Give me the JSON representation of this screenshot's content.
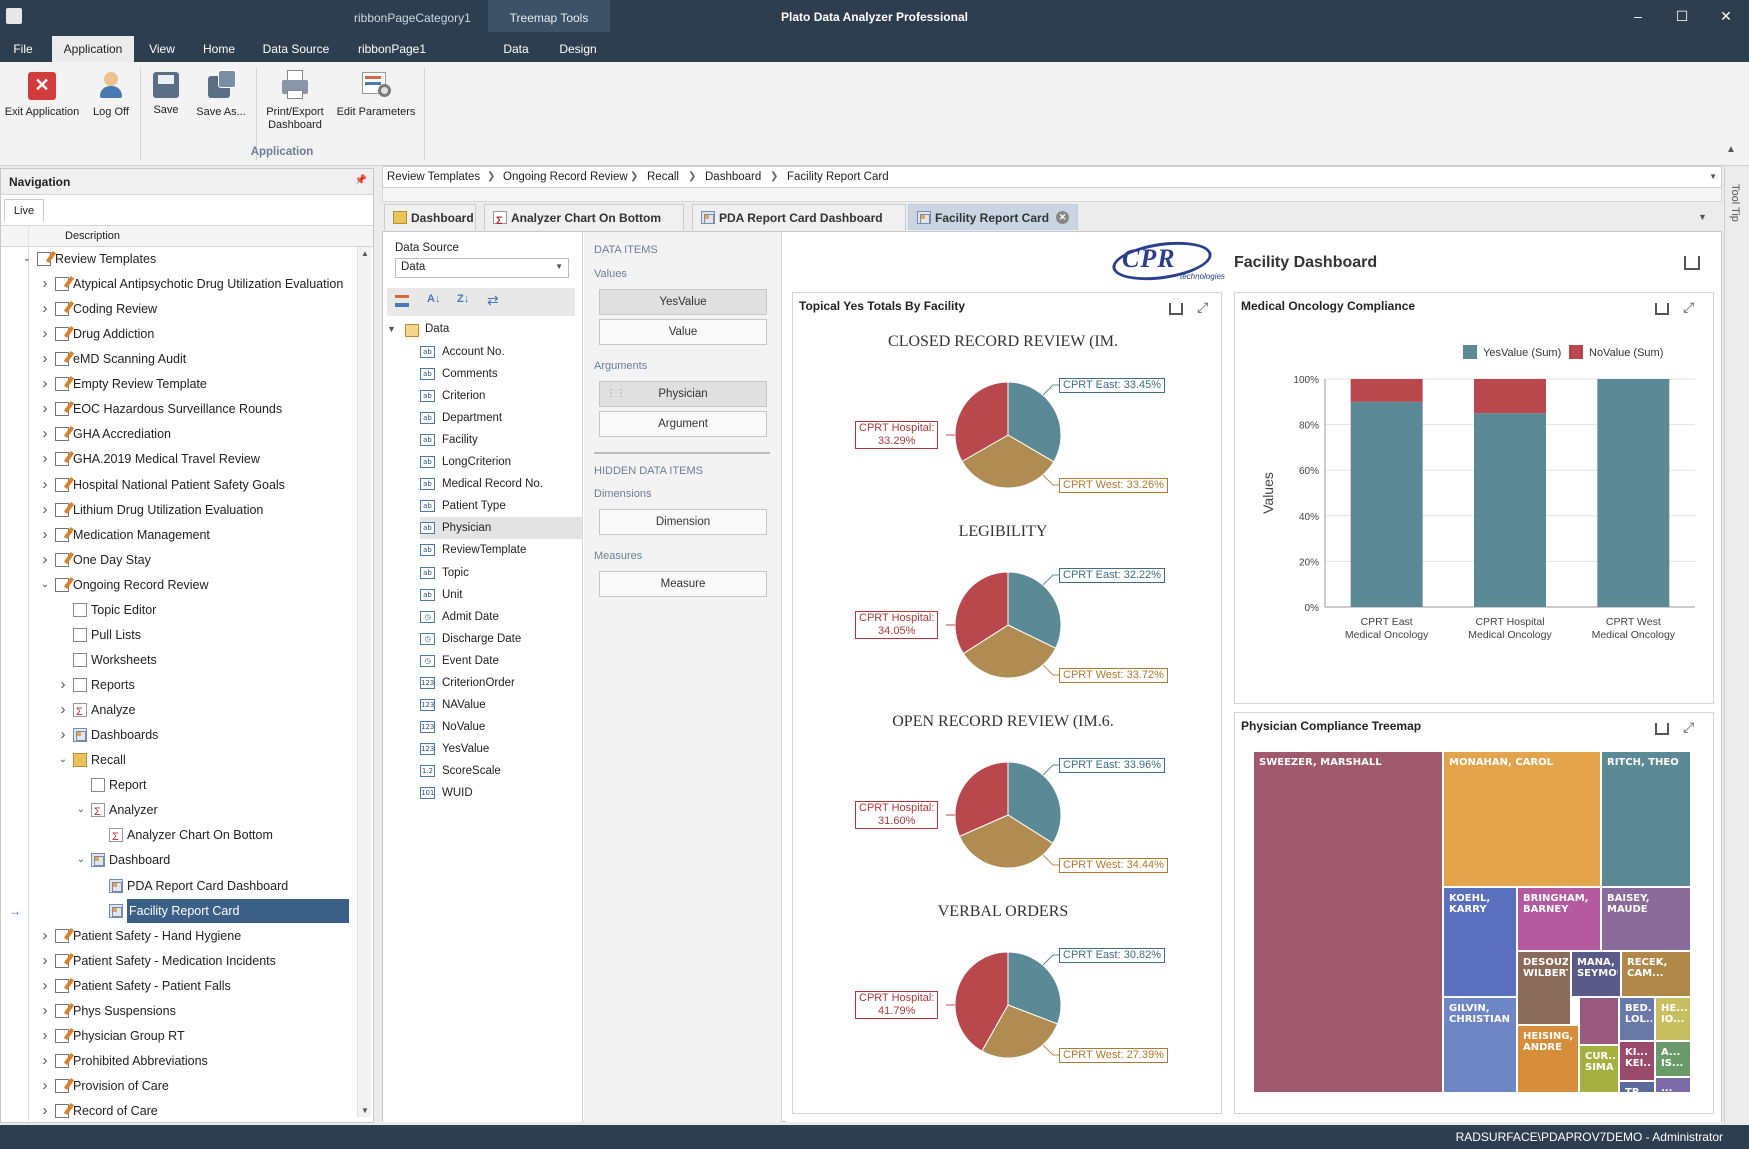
{
  "window": {
    "title": "Plato Data Analyzer Professional",
    "context_category": "ribbonPageCategory1",
    "context_tab": "Treemap Tools"
  },
  "menu": {
    "items": [
      "File",
      "Application",
      "View",
      "Home",
      "Data Source",
      "ribbonPage1",
      "Data",
      "Design"
    ],
    "active": "Application"
  },
  "ribbon": {
    "group_label": "Application",
    "buttons": [
      {
        "label": "Exit Application",
        "icon": "exit-icon"
      },
      {
        "label": "Log Off",
        "icon": "user-icon"
      },
      {
        "label": "Save",
        "icon": "save-icon"
      },
      {
        "label": "Save As...",
        "icon": "save-as-icon"
      },
      {
        "label": "Print/Export Dashboard",
        "icon": "print-icon"
      },
      {
        "label": "Edit Parameters",
        "icon": "parameters-icon"
      }
    ]
  },
  "navigation": {
    "title": "Navigation",
    "tab": "Live",
    "column": "Description",
    "tree": [
      {
        "label": "Review Templates",
        "level": 0,
        "expander": "v",
        "icon": "template"
      },
      {
        "label": "Atypical Antipsychotic Drug Utilization Evaluation",
        "level": 1,
        "expander": ">",
        "icon": "template"
      },
      {
        "label": "Coding Review",
        "level": 1,
        "expander": ">",
        "icon": "template"
      },
      {
        "label": "Drug Addiction",
        "level": 1,
        "expander": ">",
        "icon": "template"
      },
      {
        "label": "eMD Scanning Audit",
        "level": 1,
        "expander": ">",
        "icon": "template"
      },
      {
        "label": "Empty Review Template",
        "level": 1,
        "expander": ">",
        "icon": "template"
      },
      {
        "label": "EOC Hazardous Surveillance Rounds",
        "level": 1,
        "expander": ">",
        "icon": "template"
      },
      {
        "label": "GHA Accrediation",
        "level": 1,
        "expander": ">",
        "icon": "template"
      },
      {
        "label": "GHA.2019 Medical Travel Review",
        "level": 1,
        "expander": ">",
        "icon": "template"
      },
      {
        "label": "Hospital National Patient Safety Goals",
        "level": 1,
        "expander": ">",
        "icon": "template"
      },
      {
        "label": "Lithium Drug Utilization Evaluation",
        "level": 1,
        "expander": ">",
        "icon": "template"
      },
      {
        "label": "Medication Management",
        "level": 1,
        "expander": ">",
        "icon": "template"
      },
      {
        "label": "One Day Stay",
        "level": 1,
        "expander": ">",
        "icon": "template"
      },
      {
        "label": "Ongoing Record Review",
        "level": 1,
        "expander": "v",
        "icon": "template"
      },
      {
        "label": "Topic Editor",
        "level": 2,
        "expander": "",
        "icon": "page"
      },
      {
        "label": "Pull Lists",
        "level": 2,
        "expander": "",
        "icon": "page"
      },
      {
        "label": "Worksheets",
        "level": 2,
        "expander": "",
        "icon": "page"
      },
      {
        "label": "Reports",
        "level": 2,
        "expander": ">",
        "icon": "page"
      },
      {
        "label": "Analyze",
        "level": 2,
        "expander": ">",
        "icon": "chart"
      },
      {
        "label": "Dashboards",
        "level": 2,
        "expander": ">",
        "icon": "dashboard"
      },
      {
        "label": "Recall",
        "level": 2,
        "expander": "v",
        "icon": "folder"
      },
      {
        "label": "Report",
        "level": 3,
        "expander": "",
        "icon": "page"
      },
      {
        "label": "Analyzer",
        "level": 3,
        "expander": "v",
        "icon": "chart"
      },
      {
        "label": "Analyzer Chart On Bottom",
        "level": 4,
        "expander": "",
        "icon": "chart"
      },
      {
        "label": "Dashboard",
        "level": 3,
        "expander": "v",
        "icon": "dashboard"
      },
      {
        "label": "PDA Report Card Dashboard",
        "level": 4,
        "expander": "",
        "icon": "dashboard"
      },
      {
        "label": "Facility Report Card",
        "level": 4,
        "expander": "",
        "icon": "dashboard",
        "selected": true
      },
      {
        "label": "Patient Safety - Hand Hygiene",
        "level": 1,
        "expander": ">",
        "icon": "template"
      },
      {
        "label": "Patient Safety - Medication Incidents",
        "level": 1,
        "expander": ">",
        "icon": "template"
      },
      {
        "label": "Patient Safety - Patient Falls",
        "level": 1,
        "expander": ">",
        "icon": "template"
      },
      {
        "label": "Phys Suspensions",
        "level": 1,
        "expander": ">",
        "icon": "template"
      },
      {
        "label": "Physician Group RT",
        "level": 1,
        "expander": ">",
        "icon": "template"
      },
      {
        "label": "Prohibited Abbreviations",
        "level": 1,
        "expander": ">",
        "icon": "template"
      },
      {
        "label": "Provision of Care",
        "level": 1,
        "expander": ">",
        "icon": "template"
      },
      {
        "label": "Record of Care",
        "level": 1,
        "expander": ">",
        "icon": "template"
      }
    ]
  },
  "breadcrumb": [
    "Review Templates",
    "Ongoing Record Review",
    "Recall",
    "Dashboard",
    "Facility Report Card"
  ],
  "doc_tabs": [
    {
      "label": "Dashboard",
      "icon": "folder"
    },
    {
      "label": "Analyzer Chart On Bottom",
      "icon": "chart"
    },
    {
      "label": "PDA Report Card Dashboard",
      "icon": "dashboard"
    },
    {
      "label": "Facility Report Card",
      "icon": "dashboard",
      "active": true
    }
  ],
  "data_source": {
    "label": "Data Source",
    "value": "Data",
    "root": "Data",
    "fields": [
      {
        "name": "Account No.",
        "type": "ab"
      },
      {
        "name": "Comments",
        "type": "ab"
      },
      {
        "name": "Criterion",
        "type": "ab"
      },
      {
        "name": "Department",
        "type": "ab"
      },
      {
        "name": "Facility",
        "type": "ab"
      },
      {
        "name": "LongCriterion",
        "type": "ab"
      },
      {
        "name": "Medical Record No.",
        "type": "ab"
      },
      {
        "name": "Patient Type",
        "type": "ab"
      },
      {
        "name": "Physician",
        "type": "ab",
        "highlight": true
      },
      {
        "name": "ReviewTemplate",
        "type": "ab"
      },
      {
        "name": "Topic",
        "type": "ab"
      },
      {
        "name": "Unit",
        "type": "ab"
      },
      {
        "name": "Admit Date",
        "type": "date"
      },
      {
        "name": "Discharge Date",
        "type": "date"
      },
      {
        "name": "Event Date",
        "type": "date"
      },
      {
        "name": "CriterionOrder",
        "type": "123"
      },
      {
        "name": "NAValue",
        "type": "123"
      },
      {
        "name": "NoValue",
        "type": "123"
      },
      {
        "name": "YesValue",
        "type": "123"
      },
      {
        "name": "ScoreScale",
        "type": "1.2"
      },
      {
        "name": "WUID",
        "type": "101"
      }
    ]
  },
  "data_items": {
    "title": "DATA ITEMS",
    "values_label": "Values",
    "values": [
      "YesValue",
      "Value"
    ],
    "arguments_label": "Arguments",
    "arguments": [
      "Physician",
      "Argument"
    ],
    "hidden_title": "HIDDEN DATA ITEMS",
    "dimensions_label": "Dimensions",
    "dimension": "Dimension",
    "measures_label": "Measures",
    "measure": "Measure"
  },
  "dashboard": {
    "logo_text": "CPR",
    "logo_sub": "technologies",
    "title": "Facility Dashboard",
    "pie_card": {
      "title": "Topical Yes Totals By Facility",
      "pies": [
        {
          "title": "CLOSED RECORD REVIEW (IM.",
          "east": "CPRT East: 33.45%",
          "hospital": "CPRT Hospital:\n33.29%",
          "west": "CPRT West: 33.26%",
          "values": [
            33.45,
            33.26,
            33.29
          ]
        },
        {
          "title": "LEGIBILITY",
          "east": "CPRT East: 32.22%",
          "hospital": "CPRT Hospital:\n34.05%",
          "west": "CPRT West: 33.72%",
          "values": [
            32.22,
            33.72,
            34.05
          ]
        },
        {
          "title": "OPEN RECORD REVIEW (IM.6.",
          "east": "CPRT East: 33.96%",
          "hospital": "CPRT Hospital:\n31.60%",
          "west": "CPRT West: 34.44%",
          "values": [
            33.96,
            34.44,
            31.6
          ]
        },
        {
          "title": "VERBAL ORDERS",
          "east": "CPRT East: 30.82%",
          "hospital": "CPRT Hospital:\n41.79%",
          "west": "CPRT West: 27.39%",
          "values": [
            30.82,
            27.39,
            41.79
          ]
        }
      ],
      "colors": {
        "east": "#5b8a96",
        "west": "#b08c52",
        "hospital": "#b8484c"
      }
    },
    "bar_card": {
      "title": "Medical Oncology Compliance",
      "ylabel": "Values",
      "legend": [
        "YesValue (Sum)",
        "NoValue (Sum)"
      ],
      "colors": [
        "#5b8a96",
        "#b8484c"
      ]
    },
    "treemap_card": {
      "title": "Physician Compliance Treemap",
      "cells": [
        {
          "label": "SWEEZER, MARSHALL",
          "color": "#a05a6e"
        },
        {
          "label": "MONAHAN, CAROL",
          "color": "#e3a44c"
        },
        {
          "label": "RITCH, THEO",
          "color": "#5b8a96"
        },
        {
          "label": "KOEHL,\nKARRY",
          "color": "#5b6fbf"
        },
        {
          "label": "BRINGHAM,\nBARNEY",
          "color": "#b45aa0"
        },
        {
          "label": "BAISEY,\nMAUDE",
          "color": "#8a6a98"
        },
        {
          "label": "DESOUZA,\nWILBERT",
          "color": "#8a6a58"
        },
        {
          "label": "MANA,\nSEYMOUR",
          "color": "#5a5a8a"
        },
        {
          "label": "RECEK,\nCAM...",
          "color": "#b0884a"
        },
        {
          "label": "GILVIN,\nCHRISTIAN",
          "color": "#6f86c6"
        },
        {
          "label": "HEISING,\nANDRE",
          "color": "#d68e3a"
        },
        {
          "label": "",
          "color": "#9a5a80"
        },
        {
          "label": "BED...\nLOL...",
          "color": "#6a7aa8"
        },
        {
          "label": "HE...\nIO...",
          "color": "#c8c060"
        },
        {
          "label": "CUR...\nSIMA",
          "color": "#a4b040"
        },
        {
          "label": "KI...\nKEI...",
          "color": "#9a4a6a"
        },
        {
          "label": "A...\nIS...",
          "color": "#6a9a6a"
        },
        {
          "label": "TR...\nJE...",
          "color": "#5a6a9a"
        },
        {
          "label": "...",
          "color": "#7a6aa8"
        }
      ]
    }
  },
  "chart_data": {
    "type": "bar",
    "title": "Medical Oncology Compliance",
    "categories": [
      "CPRT East\nMedical Oncology",
      "CPRT Hospital\nMedical Oncology",
      "CPRT West\nMedical Oncology"
    ],
    "series": [
      {
        "name": "YesValue (Sum)",
        "values": [
          90,
          85,
          100
        ]
      },
      {
        "name": "NoValue (Sum)",
        "values": [
          10,
          15,
          0
        ]
      }
    ],
    "stacked": "percent",
    "ylabel": "Values",
    "yticks": [
      "0%",
      "20%",
      "40%",
      "60%",
      "80%",
      "100%"
    ],
    "ylim": [
      0,
      100
    ],
    "legend_position": "top-right"
  },
  "right_dock": {
    "label": "Tool Tip"
  },
  "status": {
    "user": "RADSURFACE\\PDAPROV7DEMO - Administrator"
  }
}
